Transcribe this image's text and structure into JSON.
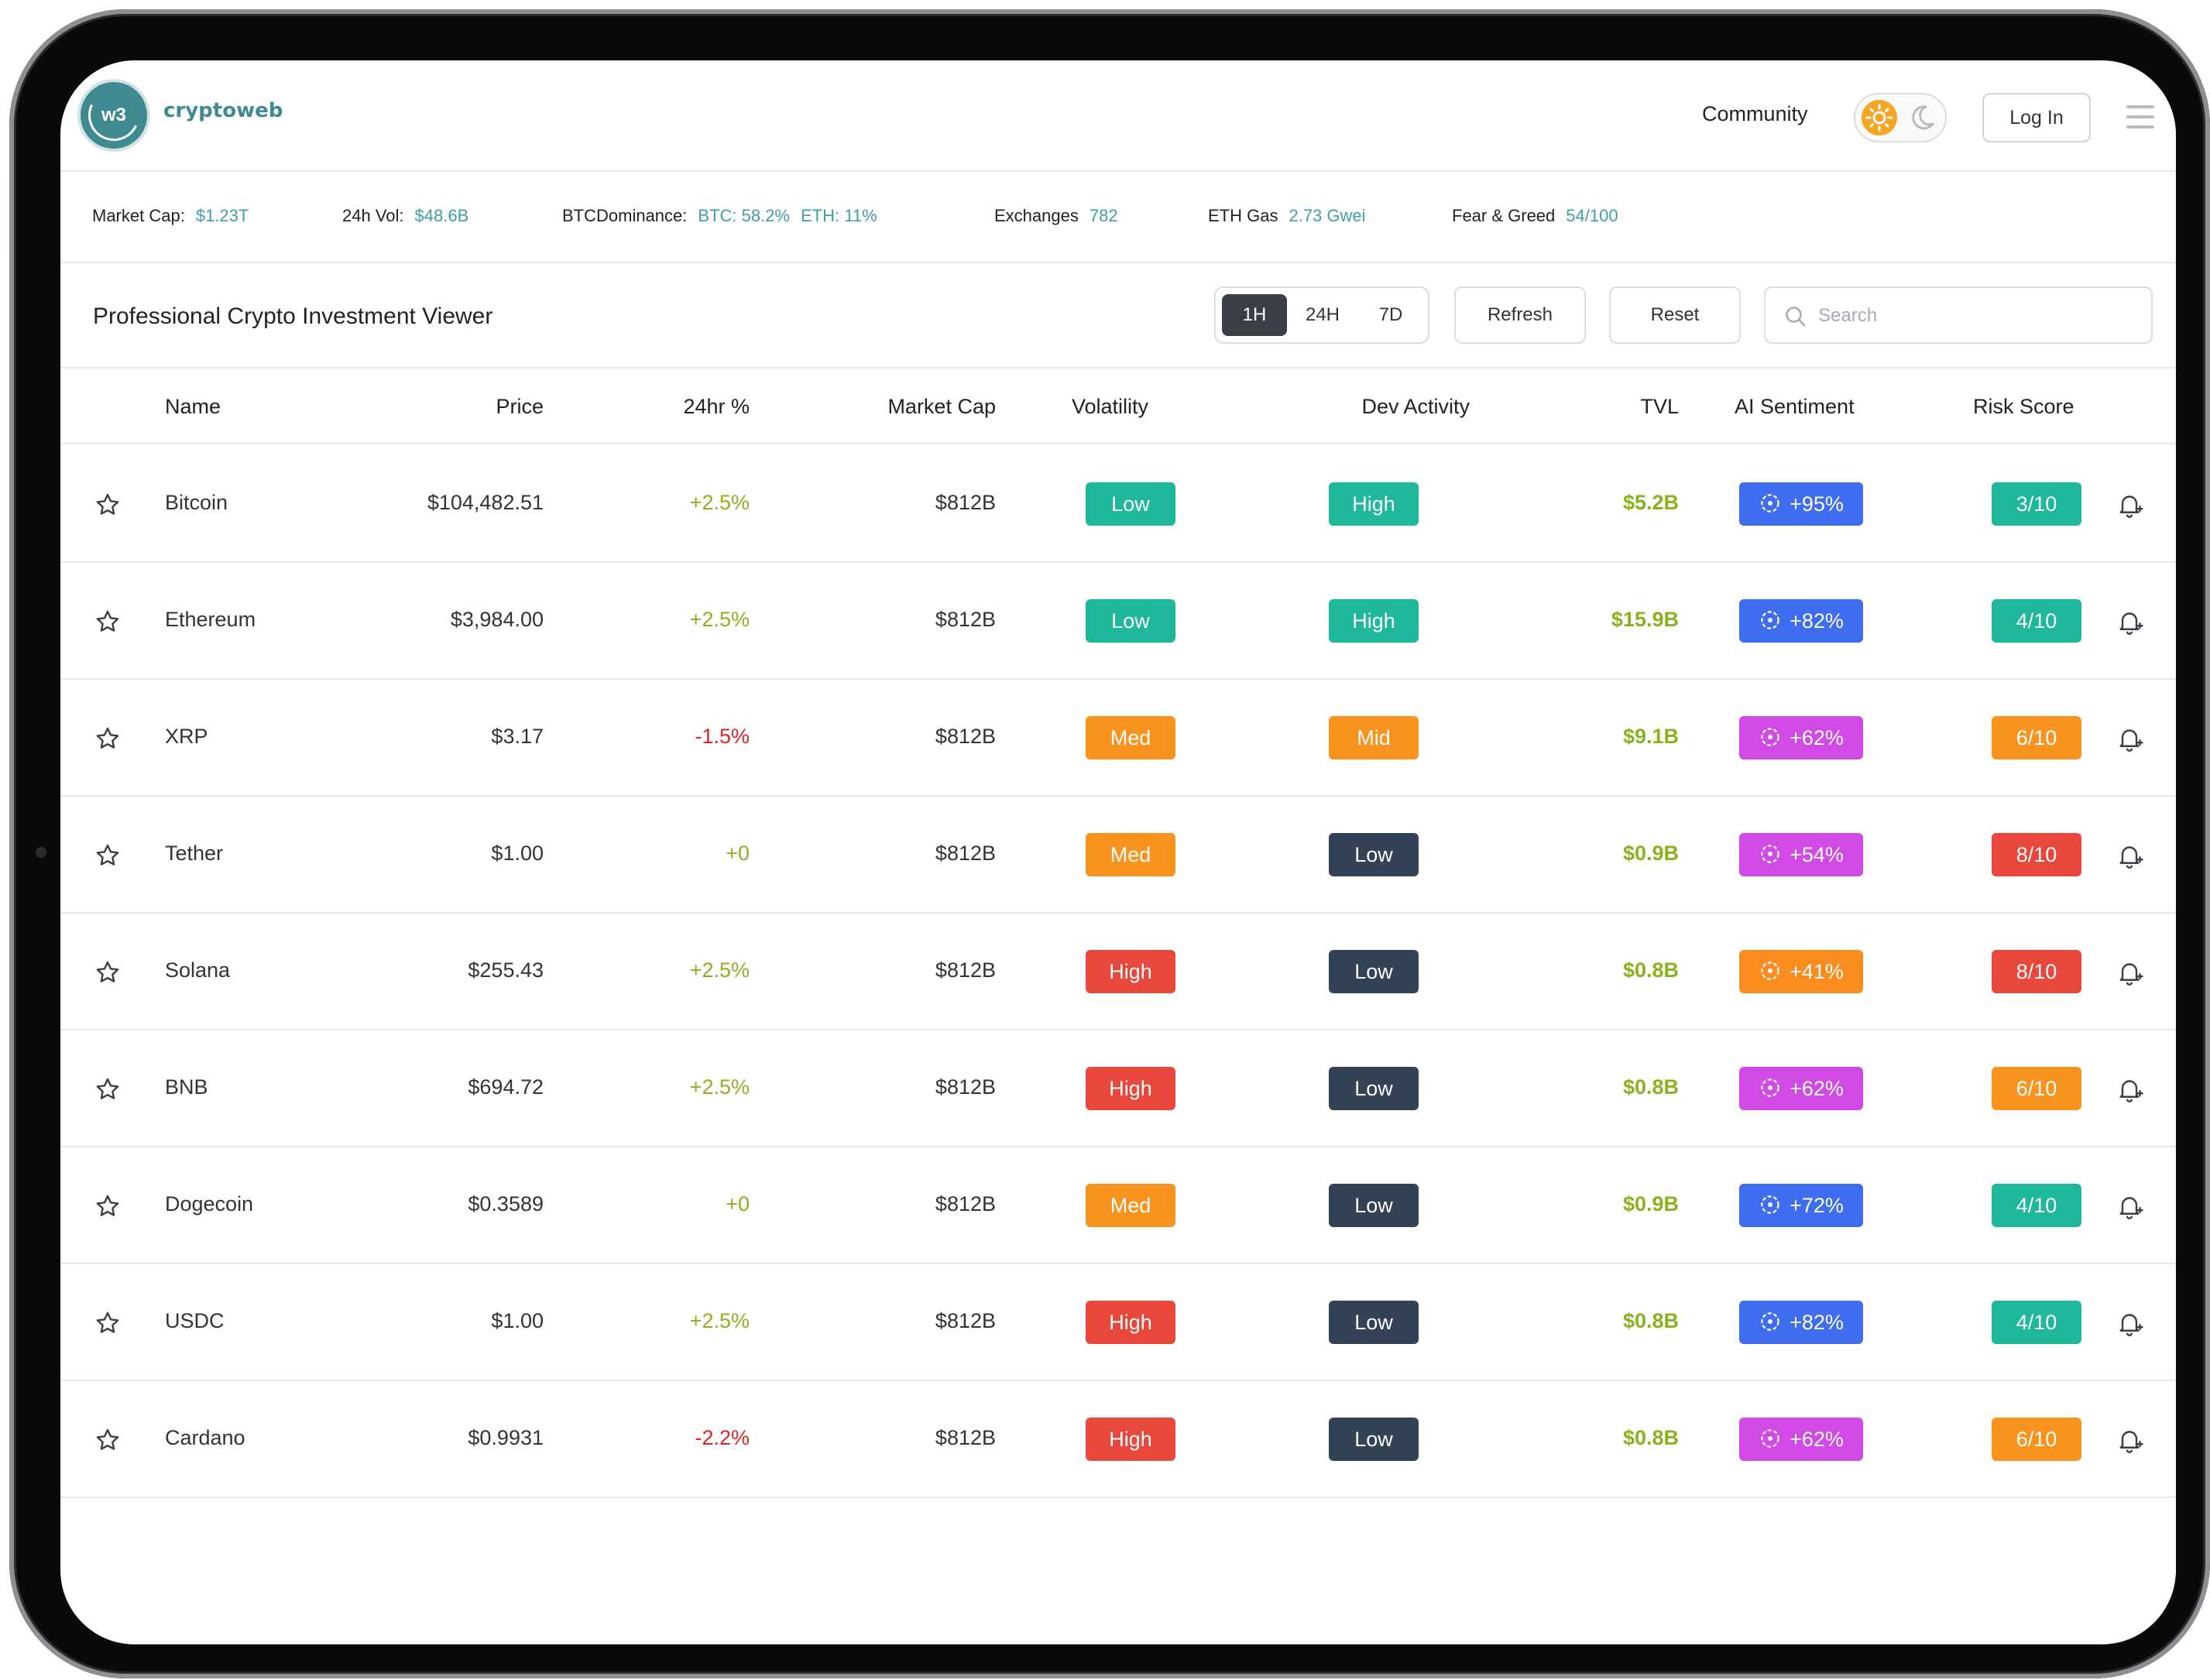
{
  "header": {
    "logo_text": "w3",
    "brand": "cryptoweb",
    "community": "Community",
    "login": "Log In"
  },
  "stats": [
    {
      "label": "Market Cap:",
      "values": [
        "$1.23T"
      ]
    },
    {
      "label": "24h Vol:",
      "values": [
        "$48.6B"
      ]
    },
    {
      "label": "BTCDominance:",
      "values": [
        "BTC: 58.2%",
        "ETH: 11%"
      ]
    },
    {
      "label": "Exchanges",
      "values": [
        "782"
      ]
    },
    {
      "label": "ETH Gas",
      "values": [
        "2.73 Gwei"
      ]
    },
    {
      "label": "Fear & Greed",
      "values": [
        "54/100"
      ]
    }
  ],
  "toolbar": {
    "title": "Professional Crypto Investment Viewer",
    "timeframes": [
      "1H",
      "24H",
      "7D"
    ],
    "active_timeframe": "1H",
    "refresh": "Refresh",
    "reset": "Reset",
    "search_placeholder": "Search"
  },
  "table": {
    "columns": [
      "Name",
      "Price",
      "24hr %",
      "Market Cap",
      "Volatility",
      "Dev Activity",
      "TVL",
      "AI Sentiment",
      "Risk Score"
    ],
    "rows": [
      {
        "name": "Bitcoin",
        "price": "$104,482.51",
        "change": "+2.5%",
        "dir": "pos",
        "mcap": "$812B",
        "volatility": "Low",
        "dev": "High",
        "tvl": "$5.2B",
        "sentiment": "+95%",
        "risk": "3/10"
      },
      {
        "name": "Ethereum",
        "price": "$3,984.00",
        "change": "+2.5%",
        "dir": "pos",
        "mcap": "$812B",
        "volatility": "Low",
        "dev": "High",
        "tvl": "$15.9B",
        "sentiment": "+82%",
        "risk": "4/10"
      },
      {
        "name": "XRP",
        "price": "$3.17",
        "change": "-1.5%",
        "dir": "neg",
        "mcap": "$812B",
        "volatility": "Med",
        "dev": "Mid",
        "tvl": "$9.1B",
        "sentiment": "+62%",
        "risk": "6/10"
      },
      {
        "name": "Tether",
        "price": "$1.00",
        "change": "+0",
        "dir": "pos",
        "mcap": "$812B",
        "volatility": "Med",
        "dev": "Low",
        "tvl": "$0.9B",
        "sentiment": "+54%",
        "risk": "8/10"
      },
      {
        "name": "Solana",
        "price": "$255.43",
        "change": "+2.5%",
        "dir": "pos",
        "mcap": "$812B",
        "volatility": "High",
        "dev": "Low",
        "tvl": "$0.8B",
        "sentiment": "+41%",
        "risk": "8/10"
      },
      {
        "name": "BNB",
        "price": "$694.72",
        "change": "+2.5%",
        "dir": "pos",
        "mcap": "$812B",
        "volatility": "High",
        "dev": "Low",
        "tvl": "$0.8B",
        "sentiment": "+62%",
        "risk": "6/10"
      },
      {
        "name": "Dogecoin",
        "price": "$0.3589",
        "change": "+0",
        "dir": "pos",
        "mcap": "$812B",
        "volatility": "Med",
        "dev": "Low",
        "tvl": "$0.9B",
        "sentiment": "+72%",
        "risk": "4/10"
      },
      {
        "name": "USDC",
        "price": "$1.00",
        "change": "+2.5%",
        "dir": "pos",
        "mcap": "$812B",
        "volatility": "High",
        "dev": "Low",
        "tvl": "$0.8B",
        "sentiment": "+82%",
        "risk": "4/10"
      },
      {
        "name": "Cardano",
        "price": "$0.9931",
        "change": "-2.2%",
        "dir": "neg",
        "mcap": "$812B",
        "volatility": "High",
        "dev": "Low",
        "tvl": "$0.8B",
        "sentiment": "+62%",
        "risk": "6/10"
      }
    ]
  },
  "icons": {
    "favorite": "star-icon",
    "alert": "bell-plus-icon",
    "sentiment": "ai-chip-icon",
    "search": "search-icon",
    "theme_light": "sun-icon",
    "theme_dark": "moon-icon",
    "menu": "hamburger-icon"
  },
  "colors": {
    "brand": "#3f8a91",
    "positive": "#8ab21f",
    "negative": "#e02424",
    "stat_value": "#3f9ea6",
    "badge_green": "#1fb89a",
    "badge_orange": "#f7931e",
    "badge_red": "#e8473b",
    "badge_dark": "#344256",
    "sentiment_blue": "#3f6df0",
    "sentiment_magenta": "#d14ae6",
    "sentiment_orange": "#fb8c1f"
  }
}
